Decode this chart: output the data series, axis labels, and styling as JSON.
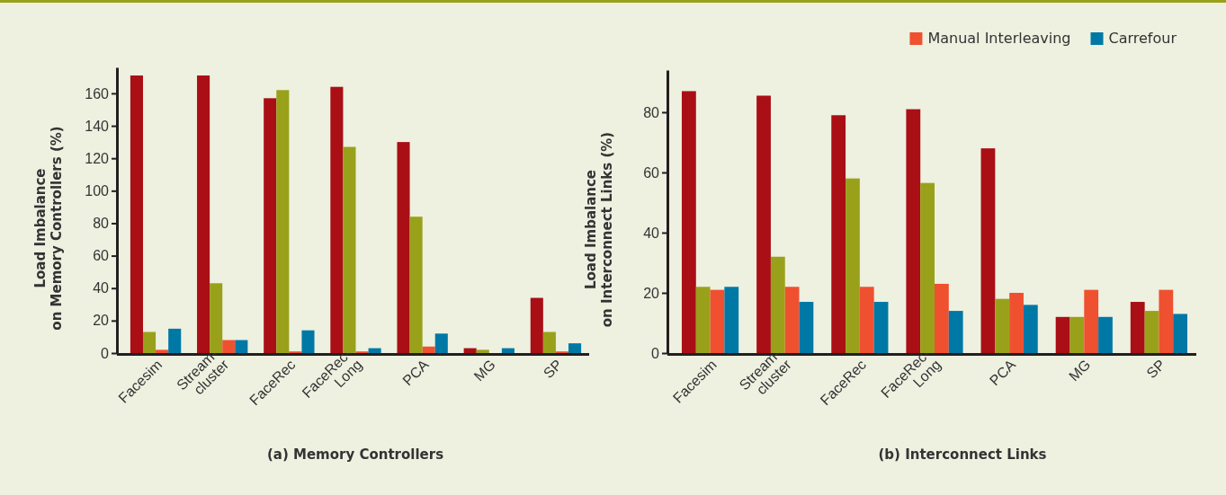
{
  "chart_data": [
    {
      "type": "bar",
      "title": "(a) Memory Controllers",
      "ylabel": "Load Imbalance\non Memory Controllers (%)",
      "categories": [
        "Facesim",
        "Stream-\ncluster",
        "FaceRec",
        "FaceRec-\nLong",
        "PCA",
        "MG",
        "SP"
      ],
      "series": [
        {
          "color": "#a90f15",
          "values": [
            171,
            171,
            157,
            164,
            130,
            3,
            34
          ]
        },
        {
          "color": "#99a11a",
          "values": [
            13,
            43,
            162,
            127,
            84,
            2,
            13
          ]
        },
        {
          "color": "#ef5030",
          "values": [
            2,
            8,
            1,
            1,
            4,
            0,
            1
          ]
        },
        {
          "color": "#0078a6",
          "values": [
            15,
            8,
            14,
            3,
            12,
            3,
            6
          ]
        }
      ],
      "ylim": [
        0,
        176
      ],
      "yticks": [
        0,
        20,
        40,
        60,
        80,
        100,
        120,
        140,
        160
      ],
      "grid": false,
      "legend": false
    },
    {
      "type": "bar",
      "title": "(b) Interconnect Links",
      "ylabel": "Load Imbalance\non Interconnect Links (%)",
      "categories": [
        "Facesim",
        "Stream-\ncluster",
        "FaceRec",
        "FaceRec-\nLong",
        "PCA",
        "MG",
        "SP"
      ],
      "series": [
        {
          "color": "#a90f15",
          "values": [
            87,
            85.5,
            79,
            81,
            68,
            12,
            17
          ]
        },
        {
          "color": "#99a11a",
          "values": [
            22,
            32,
            58,
            56.5,
            18,
            12,
            14
          ]
        },
        {
          "name": "Manual Interleaving",
          "color": "#ef5030",
          "values": [
            21,
            22,
            22,
            23,
            20,
            21,
            21
          ]
        },
        {
          "name": "Carrefour",
          "color": "#0078a6",
          "values": [
            22,
            17,
            17,
            14,
            16,
            12,
            13
          ]
        }
      ],
      "ylim": [
        0,
        94
      ],
      "yticks": [
        0,
        20,
        40,
        60,
        80
      ],
      "grid": false,
      "legend": "top"
    }
  ]
}
